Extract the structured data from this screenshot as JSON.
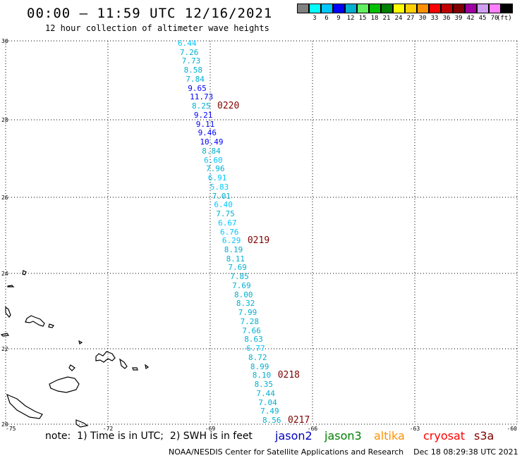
{
  "header": {
    "title": "00:00 – 11:59 UTC 12/16/2021",
    "subtitle": "12 hour collection of altimeter wave heights"
  },
  "color_scale": {
    "colors": [
      "#808080",
      "#00ffff",
      "#00c8ff",
      "#0000ff",
      "#00b0d0",
      "#60f060",
      "#00c000",
      "#008000",
      "#ffff00",
      "#ffd000",
      "#ff9000",
      "#ff0000",
      "#c00000",
      "#800000",
      "#a000a0",
      "#d0a0f0",
      "#ff80ff",
      "#000000"
    ],
    "labels": [
      "3",
      "6",
      "9",
      "12",
      "15",
      "18",
      "21",
      "24",
      "27",
      "30",
      "33",
      "36",
      "39",
      "42",
      "45",
      "70"
    ],
    "unit": "(ft)"
  },
  "axes": {
    "x_labels": [
      "-75",
      "-72",
      "-69",
      "-66",
      "-63",
      "-60"
    ],
    "y_labels": [
      "30",
      "28",
      "26",
      "24",
      "22",
      "20"
    ]
  },
  "track": {
    "points": [
      {
        "v": "6.44",
        "c": "#00c8ff"
      },
      {
        "v": "7.26",
        "c": "#00b0d0"
      },
      {
        "v": "7.73",
        "c": "#00b0d0"
      },
      {
        "v": "8.58",
        "c": "#00b0d0"
      },
      {
        "v": "7.84",
        "c": "#00b0d0"
      },
      {
        "v": "9.65",
        "c": "#0000ff"
      },
      {
        "v": "11.73",
        "c": "#0000ff"
      },
      {
        "v": "8.25",
        "c": "#00b0d0"
      },
      {
        "v": "9.21",
        "c": "#0000ff"
      },
      {
        "v": "9.11",
        "c": "#0000ff"
      },
      {
        "v": "9.46",
        "c": "#0000ff"
      },
      {
        "v": "10.49",
        "c": "#0000ff"
      },
      {
        "v": "8.84",
        "c": "#00b0d0"
      },
      {
        "v": "6.60",
        "c": "#00c8ff"
      },
      {
        "v": "7.96",
        "c": "#00b0d0"
      },
      {
        "v": "6.91",
        "c": "#00c8ff"
      },
      {
        "v": "5.83",
        "c": "#00c8ff"
      },
      {
        "v": "7.01",
        "c": "#00b0d0"
      },
      {
        "v": "6.40",
        "c": "#00c8ff"
      },
      {
        "v": "7.75",
        "c": "#00b0d0"
      },
      {
        "v": "6.67",
        "c": "#00c8ff"
      },
      {
        "v": "6.76",
        "c": "#00c8ff"
      },
      {
        "v": "6.29",
        "c": "#00c8ff"
      },
      {
        "v": "8.19",
        "c": "#00b0d0"
      },
      {
        "v": "8.11",
        "c": "#00b0d0"
      },
      {
        "v": "7.69",
        "c": "#00b0d0"
      },
      {
        "v": "7.85",
        "c": "#00b0d0"
      },
      {
        "v": "7.69",
        "c": "#00b0d0"
      },
      {
        "v": "8.00",
        "c": "#00b0d0"
      },
      {
        "v": "8.32",
        "c": "#00b0d0"
      },
      {
        "v": "7.99",
        "c": "#00b0d0"
      },
      {
        "v": "7.28",
        "c": "#00b0d0"
      },
      {
        "v": "7.66",
        "c": "#00b0d0"
      },
      {
        "v": "8.63",
        "c": "#00b0d0"
      },
      {
        "v": "6.77",
        "c": "#00c8ff"
      },
      {
        "v": "8.72",
        "c": "#00b0d0"
      },
      {
        "v": "8.99",
        "c": "#00b0d0"
      },
      {
        "v": "8.10",
        "c": "#00b0d0"
      },
      {
        "v": "8.35",
        "c": "#00b0d0"
      },
      {
        "v": "7.44",
        "c": "#00b0d0"
      },
      {
        "v": "7.04",
        "c": "#00b0d0"
      },
      {
        "v": "7.49",
        "c": "#00b0d0"
      },
      {
        "v": "8.56",
        "c": "#00b0d0"
      }
    ],
    "passes": [
      {
        "label": "0220",
        "after": 7
      },
      {
        "label": "0219",
        "after": 22
      },
      {
        "label": "0218",
        "after": 37
      },
      {
        "label": "0217",
        "after": 42
      }
    ]
  },
  "footer": {
    "note": "note:  1) Time is in UTC;  2) SWH is in feet",
    "satellites": [
      {
        "name": "jason2",
        "color": "#0000c0"
      },
      {
        "name": "jason3",
        "color": "#008000"
      },
      {
        "name": "altika",
        "color": "#ff9000"
      },
      {
        "name": "cryosat",
        "color": "#ff0000"
      },
      {
        "name": "s3a",
        "color": "#800000"
      }
    ],
    "credit": "NOAA/NESDIS Center for Satellite Applications and Research    Dec 18 08:29:38 UTC 2021"
  }
}
